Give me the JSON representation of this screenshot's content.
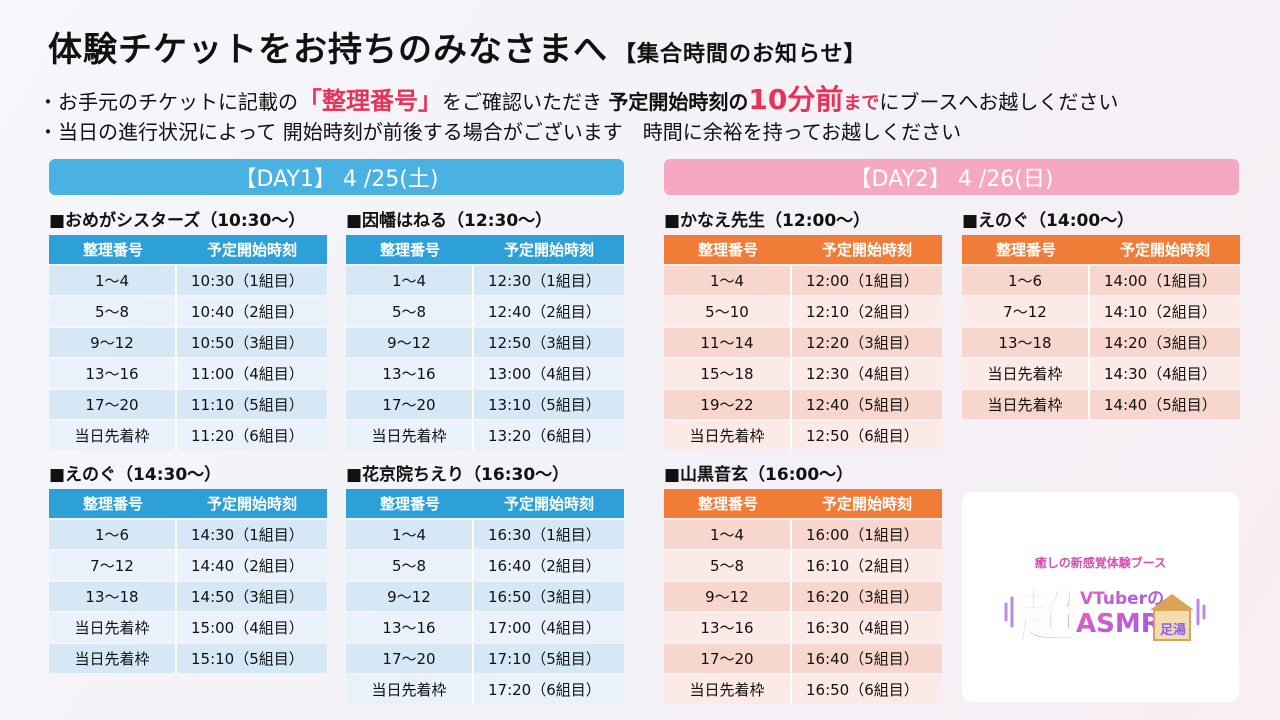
{
  "header": {
    "title": "体験チケットをお持ちのみなさまへ",
    "subtitle": "【集合時間のお知らせ】"
  },
  "notes": {
    "line1": {
      "p1": "・お手元のチケットに記載の",
      "highlight1": "「整理番号」",
      "p2": "をご確認いただき",
      "bold1": "予定開始時刻の",
      "highlight2": "10分前",
      "highlight3": "まで",
      "p3": "にブースへお越しください"
    },
    "line2": "・当日の進行状況によって 開始時刻が前後する場合がございます　時間に余裕を持ってお越しください"
  },
  "days": {
    "day1": "【DAY1】 4 /25(土)",
    "day2": "【DAY2】 4 /26(日)"
  },
  "colors": {
    "day1": "#4ab2e2",
    "day2": "#f6a8c0",
    "blue_header": "#2ea0d8",
    "orange_header": "#f07c38",
    "accent": "#e8325a"
  },
  "col_headers": {
    "number": "整理番号",
    "time": "予定開始時刻"
  },
  "schedules": [
    {
      "title": "■おめがシスターズ（10:30〜）",
      "rows": [
        [
          "1〜4",
          "10:30（1組目）"
        ],
        [
          "5〜8",
          "10:40（2組目）"
        ],
        [
          "9〜12",
          "10:50（3組目）"
        ],
        [
          "13〜16",
          "11:00（4組目）"
        ],
        [
          "17〜20",
          "11:10（5組目）"
        ],
        [
          "当日先着枠",
          "11:20（6組目）"
        ]
      ]
    },
    {
      "title": "■因幡はねる（12:30〜）",
      "rows": [
        [
          "1〜4",
          "12:30（1組目）"
        ],
        [
          "5〜8",
          "12:40（2組目）"
        ],
        [
          "9〜12",
          "12:50（3組目）"
        ],
        [
          "13〜16",
          "13:00（4組目）"
        ],
        [
          "17〜20",
          "13:10（5組目）"
        ],
        [
          "当日先着枠",
          "13:20（6組目）"
        ]
      ]
    },
    {
      "title": "■かなえ先生（12:00〜）",
      "rows": [
        [
          "1〜4",
          "12:00（1組目）"
        ],
        [
          "5〜10",
          "12:10（2組目）"
        ],
        [
          "11〜14",
          "12:20（3組目）"
        ],
        [
          "15〜18",
          "12:30（4組目）"
        ],
        [
          "19〜22",
          "12:40（5組目）"
        ],
        [
          "当日先着枠",
          "12:50（6組目）"
        ]
      ]
    },
    {
      "title": "■えのぐ（14:00〜）",
      "rows": [
        [
          "1〜6",
          "14:00（1組目）"
        ],
        [
          "7〜12",
          "14:10（2組目）"
        ],
        [
          "13〜18",
          "14:20（3組目）"
        ],
        [
          "当日先着枠",
          "14:30（4組目）"
        ],
        [
          "当日先着枠",
          "14:40（5組目）"
        ]
      ]
    },
    {
      "title": "■えのぐ（14:30〜）",
      "rows": [
        [
          "1〜6",
          "14:30（1組目）"
        ],
        [
          "7〜12",
          "14:40（2組目）"
        ],
        [
          "13〜18",
          "14:50（3組目）"
        ],
        [
          "当日先着枠",
          "15:00（4組目）"
        ],
        [
          "当日先着枠",
          "15:10（5組目）"
        ]
      ]
    },
    {
      "title": "■花京院ちえり（16:30〜）",
      "rows": [
        [
          "1〜4",
          "16:30（1組目）"
        ],
        [
          "5〜8",
          "16:40（2組目）"
        ],
        [
          "9〜12",
          "16:50（3組目）"
        ],
        [
          "13〜16",
          "17:00（4組目）"
        ],
        [
          "17〜20",
          "17:10（5組目）"
        ],
        [
          "当日先着枠",
          "17:20（6組目）"
        ]
      ]
    },
    {
      "title": "■山黒音玄（16:00〜）",
      "rows": [
        [
          "1〜4",
          "16:00（1組目）"
        ],
        [
          "5〜8",
          "16:10（2組目）"
        ],
        [
          "9〜12",
          "16:20（3組目）"
        ],
        [
          "13〜16",
          "16:30（4組目）"
        ],
        [
          "17〜20",
          "16:40（5組目）"
        ],
        [
          "当日先着枠",
          "16:50（6組目）"
        ]
      ]
    }
  ],
  "logo": {
    "tagline": "癒しの新感覚体験ブース",
    "big_char": "超",
    "line1": "VTuberの",
    "line2": "ASMR",
    "side": "足湯"
  }
}
